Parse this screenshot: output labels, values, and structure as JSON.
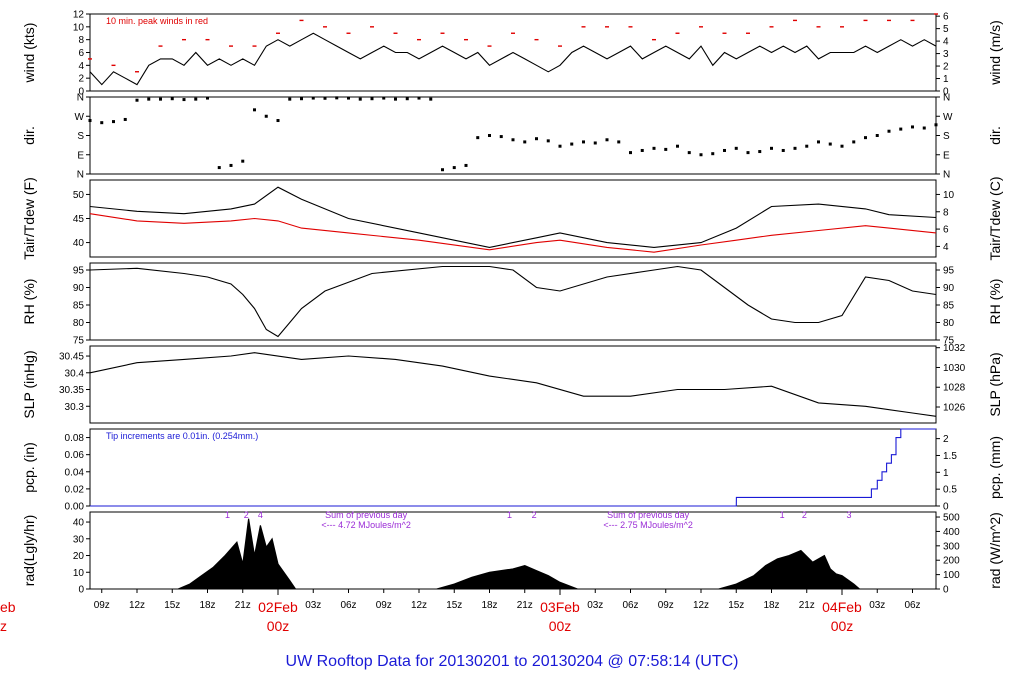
{
  "chart_data": {
    "type": "line",
    "title": "UW Rooftop Data for 20130201  to  20130204 @ 07:58:14  (UTC)",
    "colors": {
      "line": "#000000",
      "accent": "#e00000",
      "precip": "#1a1ad6",
      "annotation": "#9a2bd6",
      "title": "#1a1ad6"
    },
    "time_axis": {
      "hour_labels": [
        "09z",
        "12z",
        "15z",
        "18z",
        "21z",
        "03z",
        "06z",
        "09z",
        "12z",
        "15z",
        "18z",
        "21z",
        "03z",
        "06z",
        "09z",
        "12z",
        "15z",
        "18z",
        "21z",
        "03z",
        "06z"
      ],
      "hour_values": [
        9,
        12,
        15,
        18,
        21,
        27,
        30,
        33,
        36,
        39,
        42,
        45,
        51,
        54,
        57,
        60,
        63,
        66,
        69,
        75,
        78
      ],
      "day_labels": [
        {
          "date": "02Feb",
          "sub": "00z",
          "value": 24
        },
        {
          "date": "03Feb",
          "sub": "00z",
          "value": 48
        },
        {
          "date": "04Feb",
          "sub": "00z",
          "value": 72
        }
      ],
      "edge_label": {
        "date": "eb",
        "sub": "z"
      },
      "xlim": [
        8,
        80
      ]
    },
    "panels": [
      {
        "id": "wind",
        "left_label": "wind (kts)",
        "right_label": "wind (m/s)",
        "ylim": [
          0,
          12
        ],
        "left_ticks": [
          0,
          2,
          4,
          6,
          8,
          10,
          12
        ],
        "right_ticks": [
          0,
          1,
          2,
          3,
          4,
          5,
          6
        ],
        "right_scale": 0.5144,
        "annotation": "10 min. peak winds in red",
        "series": [
          {
            "name": "wind",
            "x": [
              8,
              9,
              10,
              11,
              12,
              13,
              14,
              15,
              16,
              17,
              18,
              19,
              20,
              21,
              22,
              23,
              24,
              25,
              26,
              27,
              28,
              29,
              30,
              31,
              32,
              33,
              34,
              35,
              36,
              37,
              38,
              39,
              40,
              41,
              42,
              43,
              44,
              45,
              46,
              47,
              48,
              49,
              50,
              51,
              52,
              53,
              54,
              55,
              56,
              57,
              58,
              59,
              60,
              61,
              62,
              63,
              64,
              65,
              66,
              67,
              68,
              69,
              70,
              71,
              72,
              73,
              74,
              75,
              76,
              77,
              78,
              79,
              80
            ],
            "y": [
              3,
              1,
              3,
              2,
              1,
              4,
              5,
              5,
              4,
              6,
              4,
              5,
              4,
              5,
              4,
              7,
              8,
              7,
              8,
              9,
              8,
              7,
              6,
              5,
              6,
              7,
              6,
              6,
              5,
              6,
              7,
              6,
              5,
              6,
              4,
              5,
              6,
              5,
              4,
              3,
              4,
              6,
              7,
              6,
              5,
              6,
              7,
              5,
              6,
              7,
              6,
              5,
              7,
              4,
              6,
              5,
              6,
              7,
              6,
              7,
              6,
              7,
              5,
              6,
              6,
              6,
              7,
              6,
              7,
              8,
              7,
              8,
              7
            ]
          },
          {
            "name": "peak",
            "x": [
              8,
              10,
              12,
              14,
              16,
              18,
              20,
              22,
              24,
              26,
              28,
              30,
              32,
              34,
              36,
              38,
              40,
              42,
              44,
              46,
              48,
              50,
              52,
              54,
              56,
              58,
              60,
              62,
              64,
              66,
              68,
              70,
              72,
              74,
              76,
              78,
              80
            ],
            "y": [
              5,
              4,
              3,
              7,
              8,
              8,
              7,
              7,
              9,
              11,
              10,
              9,
              10,
              9,
              8,
              9,
              8,
              7,
              9,
              8,
              7,
              10,
              10,
              10,
              8,
              9,
              10,
              9,
              9,
              10,
              11,
              10,
              10,
              11,
              11,
              11,
              12
            ]
          }
        ]
      },
      {
        "id": "dir",
        "left_label": "dir.",
        "right_label": "dir.",
        "ylim": [
          0,
          360
        ],
        "tick_values": [
          0,
          90,
          180,
          270,
          360
        ],
        "tick_labels": [
          "N",
          "E",
          "S",
          "W",
          "N"
        ],
        "series": [
          {
            "name": "direction",
            "x": [
              8,
              9,
              10,
              11,
              12,
              13,
              14,
              15,
              16,
              17,
              18,
              19,
              20,
              21,
              22,
              23,
              24,
              25,
              26,
              27,
              28,
              29,
              30,
              31,
              32,
              33,
              34,
              35,
              36,
              37,
              38,
              39,
              40,
              41,
              42,
              43,
              44,
              45,
              46,
              47,
              48,
              49,
              50,
              51,
              52,
              53,
              54,
              55,
              56,
              57,
              58,
              59,
              60,
              61,
              62,
              63,
              64,
              65,
              66,
              67,
              68,
              69,
              70,
              71,
              72,
              73,
              74,
              75,
              76,
              77,
              78,
              79,
              80
            ],
            "y": [
              250,
              240,
              245,
              255,
              345,
              350,
              350,
              352,
              348,
              350,
              355,
              30,
              40,
              60,
              300,
              270,
              250,
              350,
              352,
              355,
              354,
              356,
              355,
              350,
              352,
              355,
              350,
              352,
              355,
              350,
              20,
              30,
              40,
              170,
              180,
              175,
              160,
              150,
              165,
              155,
              130,
              140,
              150,
              145,
              160,
              150,
              100,
              110,
              120,
              115,
              130,
              100,
              90,
              95,
              110,
              120,
              100,
              105,
              120,
              110,
              120,
              130,
              150,
              140,
              130,
              150,
              170,
              180,
              200,
              210,
              220,
              215,
              230
            ]
          }
        ]
      },
      {
        "id": "temp",
        "left_label": "Tair/Tdew (F)",
        "right_label": "Tair/Tdew (C)",
        "ylim": [
          37,
          53
        ],
        "left_ticks": [
          40,
          45,
          50
        ],
        "right_ticks_c": [
          4,
          6,
          8,
          10
        ],
        "series": [
          {
            "name": "Tair",
            "x": [
              8,
              12,
              16,
              20,
              22,
              24,
              26,
              30,
              36,
              42,
              46,
              48,
              52,
              56,
              60,
              63,
              66,
              70,
              74,
              76,
              80
            ],
            "y": [
              47.5,
              46.5,
              46,
              47,
              48,
              51.5,
              49,
              45,
              42,
              39,
              41,
              42,
              40,
              39,
              40,
              43,
              47.5,
              48,
              47,
              45.8,
              45.2
            ]
          },
          {
            "name": "Tdew",
            "x": [
              8,
              12,
              16,
              20,
              22,
              24,
              26,
              30,
              36,
              42,
              46,
              48,
              52,
              56,
              60,
              63,
              66,
              70,
              74,
              76,
              80
            ],
            "y": [
              46,
              44.5,
              44,
              44.5,
              45,
              44.5,
              43,
              42,
              40.5,
              38.5,
              40,
              40.5,
              39,
              38,
              39.5,
              40.5,
              41.5,
              42.5,
              43.5,
              43,
              42
            ]
          }
        ]
      },
      {
        "id": "rh",
        "left_label": "RH (%)",
        "right_label": "RH (%)",
        "ylim": [
          75,
          97
        ],
        "left_ticks": [
          75,
          80,
          85,
          90,
          95
        ],
        "right_ticks": [
          75,
          80,
          85,
          90,
          95
        ],
        "series": [
          {
            "name": "RH",
            "x": [
              8,
              12,
              16,
              18,
              20,
              21,
              22,
              23,
              24,
              25,
              26,
              28,
              32,
              38,
              42,
              44,
              46,
              48,
              52,
              56,
              58,
              60,
              62,
              64,
              66,
              68,
              70,
              72,
              74,
              76,
              78,
              80
            ],
            "y": [
              95,
              95.5,
              94,
              93,
              91,
              88,
              84,
              78,
              76,
              80,
              84,
              89,
              94,
              96,
              96,
              95,
              90,
              89,
              93,
              95,
              96,
              95,
              90,
              85,
              81,
              80,
              80,
              82,
              93,
              92,
              89,
              88
            ]
          }
        ]
      },
      {
        "id": "slp",
        "left_label": "SLP (inHg)",
        "right_label": "SLP (hPa)",
        "ylim": [
          30.25,
          30.48
        ],
        "left_ticks": [
          30.3,
          30.35,
          30.4,
          30.45
        ],
        "right_ticks_hpa": [
          1026,
          1028,
          1030,
          1032
        ],
        "series": [
          {
            "name": "SLP",
            "x": [
              8,
              12,
              16,
              20,
              22,
              26,
              30,
              34,
              38,
              42,
              46,
              50,
              54,
              58,
              62,
              66,
              70,
              74,
              78,
              80
            ],
            "y": [
              30.4,
              30.43,
              30.44,
              30.45,
              30.46,
              30.44,
              30.45,
              30.44,
              30.42,
              30.39,
              30.37,
              30.33,
              30.33,
              30.35,
              30.35,
              30.36,
              30.31,
              30.3,
              30.28,
              30.27
            ]
          }
        ]
      },
      {
        "id": "pcp",
        "left_label": "pcp. (in)",
        "right_label": "pcp. (mm)",
        "ylim": [
          0,
          0.09
        ],
        "left_ticks": [
          "0.00",
          "0.02",
          "0.04",
          "0.06",
          "0.08"
        ],
        "left_tick_values": [
          0,
          0.02,
          0.04,
          0.06,
          0.08
        ],
        "right_ticks": [
          "0",
          "0.5",
          "1",
          "1.5",
          "2"
        ],
        "right_tick_values": [
          0,
          0.5,
          1,
          1.5,
          2
        ],
        "annotation": "Tip increments are 0.01in. (0.254mm.)",
        "series": [
          {
            "name": "precip",
            "x": [
              8,
              63,
              63.01,
              74.5,
              74.5,
              75,
              75,
              75.4,
              75.4,
              75.8,
              75.8,
              76.2,
              76.2,
              76.6,
              76.6,
              77,
              77,
              80
            ],
            "y": [
              0,
              0,
              0.01,
              0.01,
              0.02,
              0.02,
              0.03,
              0.03,
              0.04,
              0.04,
              0.05,
              0.05,
              0.06,
              0.06,
              0.08,
              0.08,
              0.09,
              0.09
            ]
          }
        ]
      },
      {
        "id": "rad",
        "left_label": "rad(Lgly/hr)",
        "right_label": "rad (W/m^2)",
        "ylim": [
          0,
          46
        ],
        "left_ticks": [
          0,
          10,
          20,
          30,
          40
        ],
        "right_ticks": [
          0,
          100,
          200,
          300,
          400,
          500
        ],
        "right_scale": 11.63,
        "hour_markers": [
          {
            "label": "1",
            "x": 19.7
          },
          {
            "label": "2",
            "x": 21.3
          },
          {
            "label": "4",
            "x": 22.5
          },
          {
            "label": "1",
            "x": 43.7
          },
          {
            "label": "2",
            "x": 45.8
          },
          {
            "label": "1",
            "x": 66.9
          },
          {
            "label": "2",
            "x": 68.8
          },
          {
            "label": "3",
            "x": 72.6
          }
        ],
        "daily_sums": [
          {
            "line1": "Sum of previous day",
            "line2": "<--- 4.72 MJoules/m^2",
            "x": 31.5
          },
          {
            "line1": "Sum of previous day",
            "line2": "<--- 2.75 MJoules/m^2",
            "x": 55.5
          }
        ],
        "series": [
          {
            "name": "radiation",
            "x": [
              8,
              15.5,
              16.5,
              17.5,
              18.5,
              19.5,
              20.5,
              21.0,
              21.5,
              22.0,
              22.5,
              23.0,
              23.5,
              24.0,
              25.0,
              25.5,
              37.5,
              39,
              40.5,
              42,
              44,
              45,
              46,
              47,
              48,
              49.5,
              61.5,
              63,
              64.5,
              65.5,
              66.5,
              67.5,
              68.5,
              69.5,
              70.5,
              71,
              71.5,
              72,
              73,
              73.5,
              80
            ],
            "y": [
              0,
              0,
              3,
              8,
              13,
              20,
              28,
              15,
              42,
              20,
              38,
              25,
              30,
              15,
              5,
              0,
              0,
              3,
              7,
              10,
              12,
              14,
              11,
              8,
              4,
              0,
              0,
              3,
              8,
              14,
              18,
              20,
              23,
              16,
              20,
              12,
              9,
              8,
              3,
              0,
              0
            ]
          }
        ]
      }
    ]
  }
}
